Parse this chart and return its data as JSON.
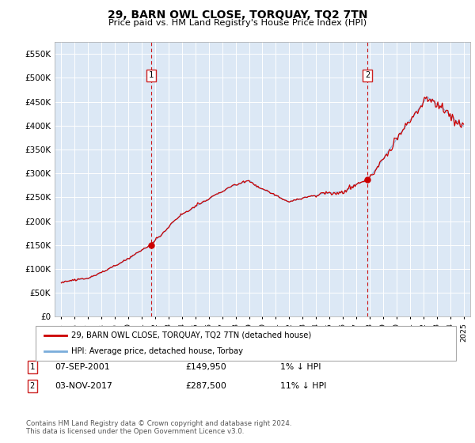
{
  "title": "29, BARN OWL CLOSE, TORQUAY, TQ2 7TN",
  "subtitle": "Price paid vs. HM Land Registry's House Price Index (HPI)",
  "fig_bg_color": "#ffffff",
  "plot_bg_color": "#dce8f5",
  "hpi_color": "#7aaddb",
  "price_color": "#cc0000",
  "marker_color": "#cc0000",
  "sale1_date_num": 2001.69,
  "sale1_price": 149950,
  "sale2_date_num": 2017.84,
  "sale2_price": 287500,
  "ylim_min": 0,
  "ylim_max": 575000,
  "yticks": [
    0,
    50000,
    100000,
    150000,
    200000,
    250000,
    300000,
    350000,
    400000,
    450000,
    500000,
    550000
  ],
  "ytick_labels": [
    "£0",
    "£50K",
    "£100K",
    "£150K",
    "£200K",
    "£250K",
    "£300K",
    "£350K",
    "£400K",
    "£450K",
    "£500K",
    "£550K"
  ],
  "legend_label1": "29, BARN OWL CLOSE, TORQUAY, TQ2 7TN (detached house)",
  "legend_label2": "HPI: Average price, detached house, Torbay",
  "note1_label": "1",
  "note1_date": "07-SEP-2001",
  "note1_price": "£149,950",
  "note1_hpi": "1% ↓ HPI",
  "note2_label": "2",
  "note2_date": "03-NOV-2017",
  "note2_price": "£287,500",
  "note2_hpi": "11% ↓ HPI",
  "footer": "Contains HM Land Registry data © Crown copyright and database right 2024.\nThis data is licensed under the Open Government Licence v3.0.",
  "xmin": 1994.5,
  "xmax": 2025.5
}
